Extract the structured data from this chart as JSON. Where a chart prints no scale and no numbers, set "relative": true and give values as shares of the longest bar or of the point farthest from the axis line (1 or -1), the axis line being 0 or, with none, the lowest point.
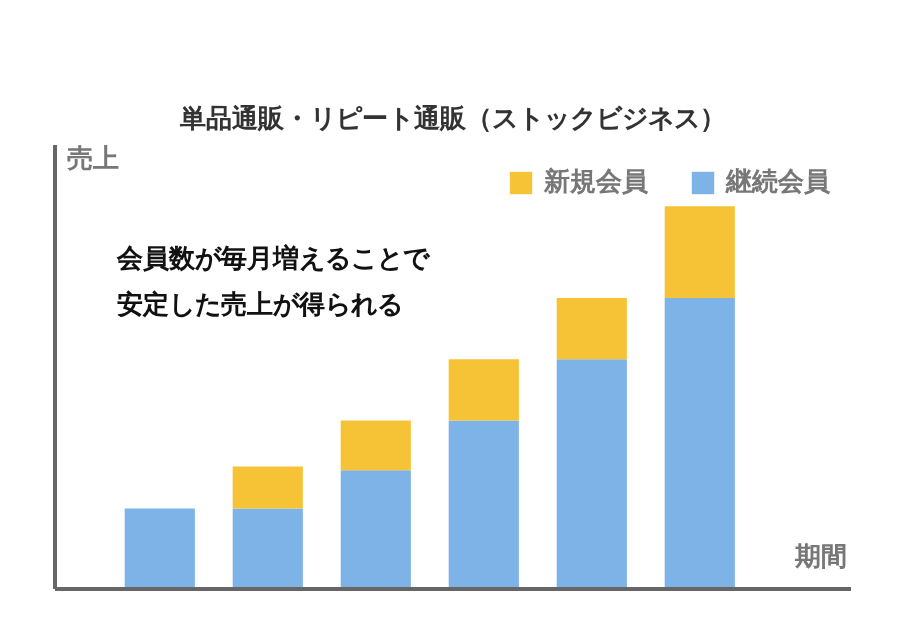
{
  "chart_data": {
    "type": "bar",
    "title": "単品通販・リピート通販（ストックビジネス）",
    "xlabel": "期間",
    "ylabel": "売上",
    "annotations": [
      "会員数が毎月増えることで",
      "安定した売上が得られる"
    ],
    "categories": [
      null,
      null,
      null,
      null,
      null,
      null
    ],
    "relative": true,
    "stacked": true,
    "legend": "top right",
    "series": [
      {
        "name": "継続会員",
        "color": "#7eb3e8",
        "values": [
          0.21,
          0.21,
          0.31,
          0.44,
          0.6,
          0.76
        ]
      },
      {
        "name": "新規会員",
        "color": "#f6c337",
        "values": [
          0,
          0.11,
          0.13,
          0.16,
          0.16,
          0.24
        ]
      }
    ]
  }
}
